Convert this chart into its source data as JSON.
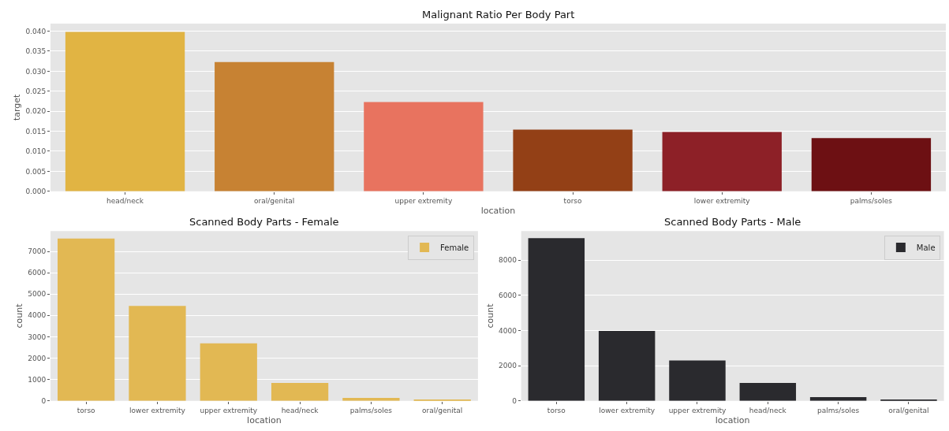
{
  "chart_data": [
    {
      "type": "bar",
      "title": "Malignant Ratio Per Body Part",
      "xlabel": "location",
      "ylabel": "target",
      "categories": [
        "head/neck",
        "oral/genital",
        "upper extremity",
        "torso",
        "lower extremity",
        "palms/soles"
      ],
      "values": [
        0.0398,
        0.0323,
        0.0223,
        0.0154,
        0.0148,
        0.0133
      ],
      "colors": [
        "#e1b443",
        "#c78233",
        "#e8735f",
        "#934016",
        "#8d2027",
        "#6d1013"
      ],
      "ylim": [
        0,
        0.0419
      ],
      "yticks": [
        {
          "value": 0,
          "label": "0.000"
        },
        {
          "value": 0.005,
          "label": "0.005"
        },
        {
          "value": 0.01,
          "label": "0.010"
        },
        {
          "value": 0.015,
          "label": "0.015"
        },
        {
          "value": 0.02,
          "label": "0.020"
        },
        {
          "value": 0.025,
          "label": "0.025"
        },
        {
          "value": 0.03,
          "label": "0.030"
        },
        {
          "value": 0.035,
          "label": "0.035"
        },
        {
          "value": 0.04,
          "label": "0.040"
        }
      ],
      "grid": "y",
      "legend": false
    },
    {
      "type": "bar",
      "title": "Scanned Body Parts - Female",
      "xlabel": "location",
      "ylabel": "count",
      "categories": [
        "torso",
        "lower extremity",
        "upper extremity",
        "head/neck",
        "palms/soles",
        "oral/genital"
      ],
      "series": [
        {
          "name": "Female",
          "color": "#e2b853",
          "values": [
            7600,
            4450,
            2690,
            840,
            140,
            60
          ]
        }
      ],
      "ylim": [
        0,
        7950
      ],
      "yticks": [
        0,
        1000,
        2000,
        3000,
        4000,
        5000,
        6000,
        7000
      ],
      "grid": "y",
      "legend": "top right"
    },
    {
      "type": "bar",
      "title": "Scanned Body Parts - Male",
      "xlabel": "location",
      "ylabel": "count",
      "categories": [
        "torso",
        "lower extremity",
        "upper extremity",
        "head/neck",
        "palms/soles",
        "oral/genital"
      ],
      "series": [
        {
          "name": "Male",
          "color": "#2a2a2e",
          "values": [
            9250,
            3970,
            2290,
            1020,
            210,
            80
          ]
        }
      ],
      "ylim": [
        0,
        9650
      ],
      "yticks": [
        0,
        2000,
        4000,
        6000,
        8000
      ],
      "grid": "y",
      "legend": "top right"
    }
  ]
}
